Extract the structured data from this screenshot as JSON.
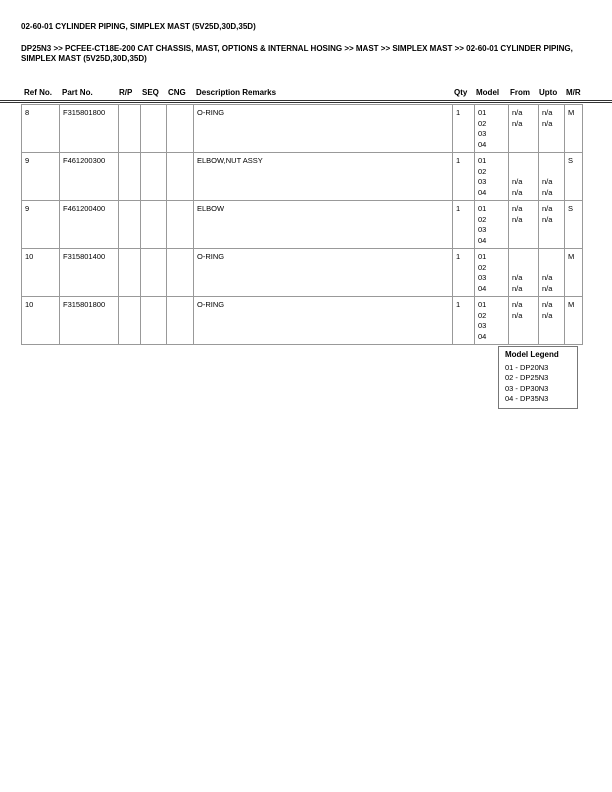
{
  "title": "02-60-01 CYLINDER PIPING, SIMPLEX MAST (5V25D,30D,35D)",
  "breadcrumb": "DP25N3 >> PCFEE-CT18E-200 CAT CHASSIS, MAST, OPTIONS & INTERNAL HOSING >> MAST >> SIMPLEX MAST >> 02-60-01 CYLINDER PIPING, SIMPLEX MAST (5V25D,30D,35D)",
  "headers": [
    "Ref No.",
    "Part No.",
    "R/P",
    "SEQ",
    "CNG",
    "Description Remarks",
    "Qty",
    "Model",
    "From",
    "Upto",
    "M/R"
  ],
  "rows": [
    {
      "ref": "8",
      "part": "F315801800",
      "rp": "",
      "seq": "",
      "cng": "",
      "desc": "O-RING",
      "qty": "1",
      "models": [
        "01",
        "02",
        "03",
        "04"
      ],
      "from": [
        "n/a",
        "n/a",
        "",
        ""
      ],
      "upto": [
        "n/a",
        "n/a",
        "",
        ""
      ],
      "mr": "M"
    },
    {
      "ref": "9",
      "part": "F461200300",
      "rp": "",
      "seq": "",
      "cng": "",
      "desc": "ELBOW,NUT ASSY",
      "qty": "1",
      "models": [
        "01",
        "02",
        "03",
        "04"
      ],
      "from": [
        "",
        "",
        "n/a",
        "n/a"
      ],
      "upto": [
        "",
        "",
        "n/a",
        "n/a"
      ],
      "mr": "S"
    },
    {
      "ref": "9",
      "part": "F461200400",
      "rp": "",
      "seq": "",
      "cng": "",
      "desc": "ELBOW",
      "qty": "1",
      "models": [
        "01",
        "02",
        "03",
        "04"
      ],
      "from": [
        "n/a",
        "n/a",
        "",
        ""
      ],
      "upto": [
        "n/a",
        "n/a",
        "",
        ""
      ],
      "mr": "S"
    },
    {
      "ref": "10",
      "part": "F315801400",
      "rp": "",
      "seq": "",
      "cng": "",
      "desc": "O-RING",
      "qty": "1",
      "models": [
        "01",
        "02",
        "03",
        "04"
      ],
      "from": [
        "",
        "",
        "n/a",
        "n/a"
      ],
      "upto": [
        "",
        "",
        "n/a",
        "n/a"
      ],
      "mr": "M"
    },
    {
      "ref": "10",
      "part": "F315801800",
      "rp": "",
      "seq": "",
      "cng": "",
      "desc": "O-RING",
      "qty": "1",
      "models": [
        "01",
        "02",
        "03",
        "04"
      ],
      "from": [
        "n/a",
        "n/a",
        "",
        ""
      ],
      "upto": [
        "n/a",
        "n/a",
        "",
        ""
      ],
      "mr": "M"
    }
  ],
  "legend": {
    "title": "Model Legend",
    "items": [
      "01 - DP20N3",
      "02 - DP25N3",
      "03 - DP30N3",
      "04 - DP35N3"
    ]
  }
}
